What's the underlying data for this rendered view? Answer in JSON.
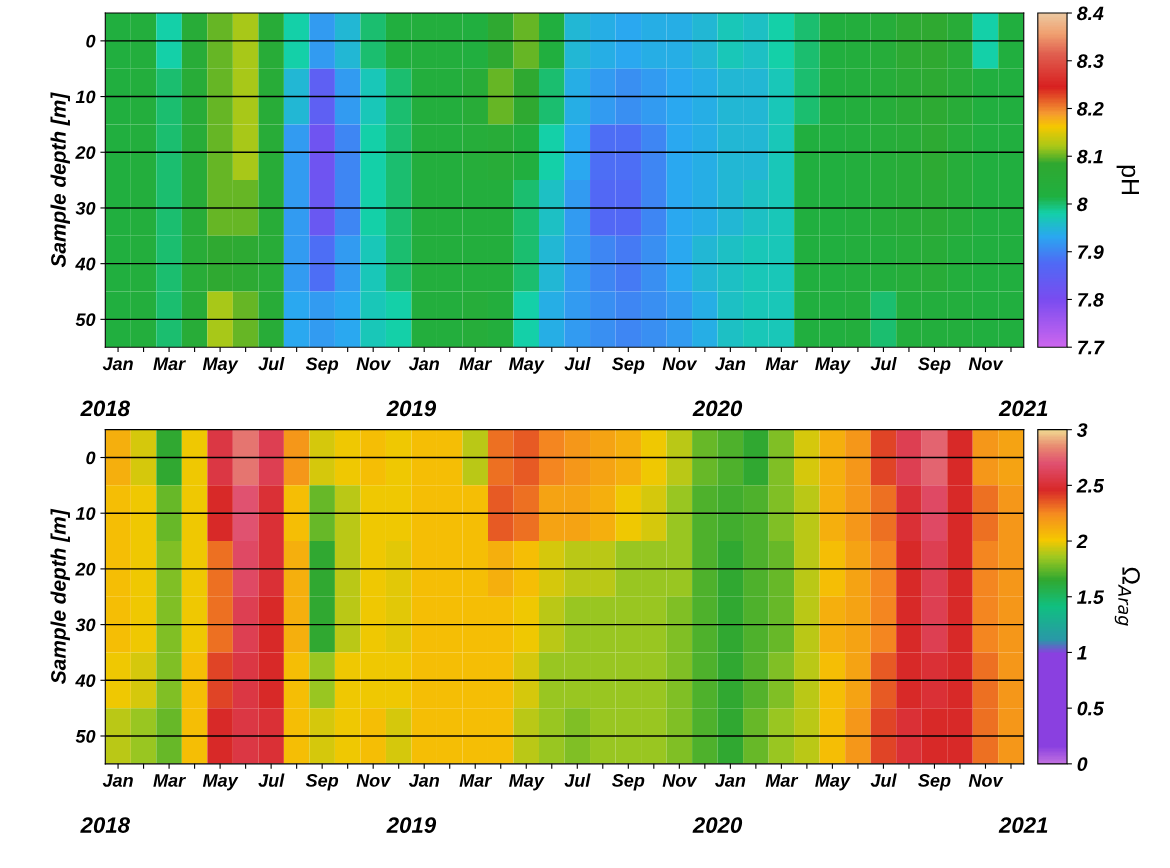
{
  "chart_data": [
    {
      "type": "heatmap",
      "ylabel": "Sample depth [m]",
      "clabel": "pH",
      "grid": "y",
      "categories": [
        "Jan",
        null,
        "Mar",
        null,
        "May",
        null,
        "Jul",
        null,
        "Sep",
        null,
        "Nov",
        null,
        "Jan",
        null,
        "Mar",
        null,
        "May",
        null,
        "Jul",
        null,
        "Sep",
        null,
        "Nov",
        null,
        "Jan",
        null,
        "Mar",
        null,
        "May",
        null,
        "Jul",
        null,
        "Sep",
        null,
        "Nov",
        null
      ],
      "y_categories": [
        "0",
        "10",
        "20",
        "30",
        "40",
        "50"
      ],
      "cells": [
        [
          8.02,
          8.03,
          7.98,
          8.05,
          8.1,
          8.12,
          8.05,
          7.98,
          7.92,
          7.95,
          8.0,
          8.02,
          8.03,
          8.03,
          8.02,
          8.08,
          8.1,
          8.02,
          7.95,
          7.94,
          7.93,
          7.94,
          7.94,
          7.95,
          7.97,
          7.96,
          7.98,
          8.0,
          8.02,
          8.03,
          8.04,
          8.07,
          8.08,
          8.05,
          7.98,
          8.02
        ],
        [
          8.02,
          8.03,
          8.0,
          8.05,
          8.1,
          8.12,
          8.05,
          7.95,
          7.85,
          7.92,
          7.97,
          8.0,
          8.03,
          8.03,
          8.05,
          8.1,
          8.08,
          8.0,
          7.94,
          7.92,
          7.91,
          7.92,
          7.93,
          7.94,
          7.95,
          7.95,
          7.97,
          8.0,
          8.02,
          8.03,
          8.04,
          8.06,
          8.07,
          8.05,
          8.02,
          8.02
        ],
        [
          8.02,
          8.03,
          8.0,
          8.05,
          8.1,
          8.12,
          8.05,
          7.92,
          7.82,
          7.9,
          7.98,
          8.0,
          8.03,
          8.03,
          8.04,
          8.05,
          8.02,
          7.98,
          7.93,
          7.88,
          7.88,
          7.9,
          7.93,
          7.94,
          7.95,
          7.95,
          7.97,
          8.02,
          8.02,
          8.03,
          8.04,
          8.05,
          8.07,
          8.04,
          8.02,
          8.02
        ],
        [
          8.02,
          8.03,
          8.0,
          8.05,
          8.1,
          8.1,
          8.05,
          7.92,
          7.83,
          7.9,
          7.98,
          8.0,
          8.03,
          8.03,
          8.03,
          8.03,
          8.0,
          7.96,
          7.92,
          7.87,
          7.87,
          7.9,
          7.93,
          7.94,
          7.95,
          7.96,
          7.97,
          8.02,
          8.02,
          8.03,
          8.04,
          8.05,
          8.06,
          8.04,
          8.02,
          8.02
        ],
        [
          8.02,
          8.03,
          8.0,
          8.05,
          8.08,
          8.07,
          8.05,
          7.92,
          7.88,
          7.92,
          7.97,
          8.0,
          8.03,
          8.03,
          8.03,
          8.03,
          8.0,
          7.95,
          7.92,
          7.9,
          7.89,
          7.91,
          7.93,
          7.95,
          7.96,
          7.97,
          7.97,
          8.02,
          8.02,
          8.03,
          8.03,
          8.04,
          8.05,
          8.03,
          8.02,
          8.02
        ],
        [
          8.02,
          8.03,
          8.0,
          8.05,
          8.12,
          8.1,
          8.05,
          7.93,
          7.92,
          7.93,
          7.97,
          7.98,
          8.03,
          8.03,
          8.04,
          8.03,
          7.98,
          7.94,
          7.92,
          7.91,
          7.9,
          7.91,
          7.92,
          7.94,
          7.96,
          7.97,
          7.97,
          8.02,
          8.02,
          8.03,
          8.0,
          8.03,
          8.03,
          8.03,
          8.02,
          8.02
        ]
      ],
      "clim": [
        7.7,
        8.4
      ],
      "cticks": [
        7.7,
        7.8,
        7.9,
        8,
        8.1,
        8.2,
        8.3,
        8.4
      ],
      "annotations": [
        "2018",
        "2019",
        "2020",
        "2021"
      ]
    },
    {
      "type": "heatmap",
      "ylabel": "Sample depth [m]",
      "clabel": "Ω$_{Arag}$",
      "grid": "y",
      "categories": [
        "Jan",
        null,
        "Mar",
        null,
        "May",
        null,
        "Jul",
        null,
        "Sep",
        null,
        "Nov",
        null,
        "Jan",
        null,
        "Mar",
        null,
        "May",
        null,
        "Jul",
        null,
        "Sep",
        null,
        "Nov",
        null,
        "Jan",
        null,
        "Mar",
        null,
        "May",
        null,
        "Jul",
        null,
        "Sep",
        null,
        "Nov",
        null
      ],
      "y_categories": [
        "0",
        "10",
        "20",
        "30",
        "40",
        "50"
      ],
      "cells": [
        [
          2.1,
          1.95,
          1.65,
          2.0,
          2.55,
          2.8,
          2.6,
          2.2,
          1.95,
          2.0,
          2.05,
          2.0,
          2.05,
          2.05,
          1.9,
          2.3,
          2.35,
          2.25,
          2.2,
          2.15,
          2.1,
          2.0,
          1.9,
          1.75,
          1.7,
          1.65,
          1.8,
          1.95,
          2.1,
          2.2,
          2.4,
          2.6,
          2.75,
          2.45,
          2.2,
          2.15
        ],
        [
          2.05,
          2.0,
          1.75,
          2.0,
          2.45,
          2.7,
          2.5,
          2.05,
          1.75,
          1.9,
          2.0,
          2.0,
          2.05,
          2.05,
          2.05,
          2.35,
          2.3,
          2.15,
          2.15,
          2.1,
          2.0,
          1.95,
          1.85,
          1.7,
          1.68,
          1.7,
          1.8,
          1.9,
          2.1,
          2.2,
          2.3,
          2.5,
          2.65,
          2.45,
          2.3,
          2.2
        ],
        [
          2.05,
          2.0,
          1.8,
          2.0,
          2.3,
          2.65,
          2.5,
          2.1,
          1.65,
          1.9,
          2.0,
          1.98,
          2.05,
          2.05,
          2.05,
          2.1,
          2.05,
          1.95,
          1.9,
          1.9,
          1.85,
          1.85,
          1.85,
          1.7,
          1.65,
          1.7,
          1.75,
          1.9,
          2.05,
          2.15,
          2.25,
          2.45,
          2.6,
          2.45,
          2.25,
          2.2
        ],
        [
          2.05,
          2.0,
          1.8,
          2.0,
          2.3,
          2.6,
          2.45,
          2.1,
          1.65,
          1.9,
          2.0,
          1.98,
          2.05,
          2.05,
          2.05,
          2.05,
          2.0,
          1.9,
          1.85,
          1.85,
          1.85,
          1.85,
          1.8,
          1.7,
          1.65,
          1.7,
          1.75,
          1.9,
          2.1,
          2.15,
          2.25,
          2.45,
          2.6,
          2.45,
          2.25,
          2.2
        ],
        [
          2.0,
          1.95,
          1.8,
          2.05,
          2.4,
          2.55,
          2.45,
          2.05,
          1.85,
          2.0,
          2.0,
          2.0,
          2.05,
          2.05,
          2.05,
          2.05,
          1.95,
          1.85,
          1.85,
          1.85,
          1.85,
          1.85,
          1.8,
          1.7,
          1.65,
          1.72,
          1.8,
          1.9,
          2.05,
          2.15,
          2.35,
          2.45,
          2.5,
          2.45,
          2.3,
          2.2
        ],
        [
          1.9,
          1.85,
          1.75,
          2.05,
          2.45,
          2.55,
          2.5,
          2.05,
          1.95,
          2.0,
          2.05,
          1.95,
          2.05,
          2.05,
          2.05,
          2.05,
          1.9,
          1.85,
          1.8,
          1.85,
          1.85,
          1.85,
          1.8,
          1.7,
          1.65,
          1.75,
          1.85,
          1.9,
          2.05,
          2.2,
          2.4,
          2.5,
          2.45,
          2.45,
          2.3,
          2.2
        ]
      ],
      "clim": [
        0,
        3
      ],
      "cticks": [
        0,
        0.5,
        1,
        1.5,
        2,
        2.5,
        3
      ],
      "annotations": [
        "2018",
        "2019",
        "2020",
        "2021"
      ]
    }
  ]
}
